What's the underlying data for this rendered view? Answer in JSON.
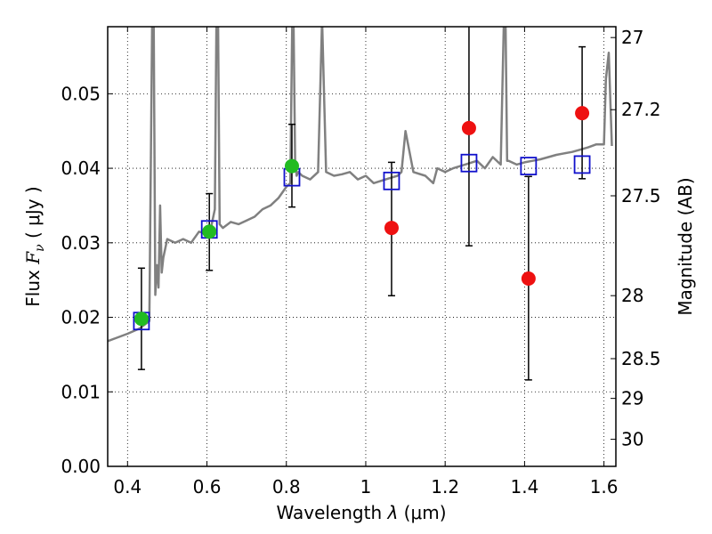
{
  "chart_data": {
    "type": "scatter",
    "title": "",
    "xlabel": {
      "prefix": "Wavelength  ",
      "symbol": "λ",
      "unit": " (μm)"
    },
    "ylabel": {
      "prefix": "Flux  ",
      "symbol": "F",
      "subscript": "ν",
      "unit": "  ( μJy )"
    },
    "y2label": "Magnitude (AB)",
    "xlim": [
      0.35,
      1.63
    ],
    "ylim": [
      0.0,
      0.059
    ],
    "grid": true,
    "grid_style": "dotted",
    "x_ticks": [
      0.4,
      0.6,
      0.8,
      1.0,
      1.2,
      1.4,
      1.6
    ],
    "x_tick_labels": [
      "0.4",
      "0.6",
      "0.8",
      "1",
      "1.2",
      "1.4",
      "1.6"
    ],
    "y_ticks": [
      0.0,
      0.01,
      0.02,
      0.03,
      0.04,
      0.05
    ],
    "y_tick_labels": [
      "0.00",
      "0.01",
      "0.02",
      "0.03",
      "0.04",
      "0.05"
    ],
    "y2_ticks": [
      27,
      27.2,
      27.5,
      28,
      28.5,
      29,
      30
    ],
    "y2_tick_labels": [
      "27",
      "27.2",
      "27.5",
      "28",
      "28.5",
      "29",
      "30"
    ],
    "y2_scale": "AB magnitude, m = 23.9 - 2.5 log10(F / 1 μJy)",
    "colors": {
      "model": "#808080",
      "observed_detected": "#22bb22",
      "observed_upper": "#ee1111",
      "model_photometry": "#1111cc",
      "errorbar": "#000000"
    },
    "series": [
      {
        "marker": "circle",
        "color": "#22bb22",
        "x": [
          0.435,
          0.606,
          0.814
        ],
        "y": [
          0.0198,
          0.0315,
          0.0403
        ],
        "yerr_low": [
          0.013,
          0.0263,
          0.0348
        ],
        "yerr_high": [
          0.0266,
          0.0366,
          0.0459
        ]
      },
      {
        "marker": "circle",
        "color": "#ee1111",
        "x": [
          1.065,
          1.26,
          1.41,
          1.545
        ],
        "y": [
          0.032,
          0.0454,
          0.0252,
          0.0474
        ],
        "yerr_low": [
          0.0229,
          0.0296,
          0.0116,
          0.0386
        ],
        "yerr_high": [
          0.0408,
          0.061,
          0.0389,
          0.0563
        ]
      },
      {
        "marker": "open-square",
        "color": "#1111cc",
        "x": [
          0.435,
          0.606,
          0.814,
          1.065,
          1.26,
          1.41,
          1.545
        ],
        "y": [
          0.0195,
          0.0318,
          0.0388,
          0.0383,
          0.0407,
          0.0403,
          0.0405
        ]
      },
      {
        "marker": "line",
        "color": "#808080",
        "x": [
          0.35,
          0.37,
          0.4,
          0.43,
          0.455,
          0.462,
          0.466,
          0.47,
          0.474,
          0.478,
          0.482,
          0.486,
          0.49,
          0.5,
          0.52,
          0.54,
          0.56,
          0.58,
          0.6,
          0.61,
          0.62,
          0.624,
          0.628,
          0.632,
          0.64,
          0.66,
          0.68,
          0.7,
          0.72,
          0.74,
          0.76,
          0.78,
          0.8,
          0.81,
          0.815,
          0.818,
          0.822,
          0.826,
          0.83,
          0.84,
          0.86,
          0.88,
          0.89,
          0.9,
          0.92,
          0.94,
          0.96,
          0.98,
          1.0,
          1.02,
          1.05,
          1.08,
          1.09,
          1.1,
          1.12,
          1.15,
          1.17,
          1.18,
          1.2,
          1.22,
          1.25,
          1.28,
          1.3,
          1.32,
          1.34,
          1.348,
          1.352,
          1.356,
          1.36,
          1.38,
          1.4,
          1.42,
          1.44,
          1.46,
          1.48,
          1.5,
          1.52,
          1.54,
          1.56,
          1.58,
          1.6,
          1.605,
          1.612,
          1.62
        ],
        "y": [
          0.0168,
          0.0172,
          0.0178,
          0.0185,
          0.0195,
          0.06,
          0.06,
          0.023,
          0.027,
          0.024,
          0.035,
          0.026,
          0.028,
          0.0305,
          0.03,
          0.0305,
          0.03,
          0.0315,
          0.0312,
          0.032,
          0.0345,
          0.06,
          0.06,
          0.0325,
          0.032,
          0.0328,
          0.0325,
          0.033,
          0.0335,
          0.0345,
          0.035,
          0.036,
          0.0375,
          0.038,
          0.06,
          0.06,
          0.041,
          0.039,
          0.0395,
          0.039,
          0.0385,
          0.0395,
          0.06,
          0.0395,
          0.039,
          0.0392,
          0.0395,
          0.0385,
          0.039,
          0.038,
          0.0385,
          0.039,
          0.0395,
          0.045,
          0.0395,
          0.039,
          0.038,
          0.04,
          0.0395,
          0.04,
          0.0405,
          0.041,
          0.04,
          0.0415,
          0.0405,
          0.06,
          0.06,
          0.041,
          0.041,
          0.0405,
          0.0408,
          0.041,
          0.0412,
          0.0415,
          0.0418,
          0.042,
          0.0422,
          0.0425,
          0.0428,
          0.0432,
          0.0432,
          0.052,
          0.0555,
          0.043
        ]
      }
    ]
  }
}
